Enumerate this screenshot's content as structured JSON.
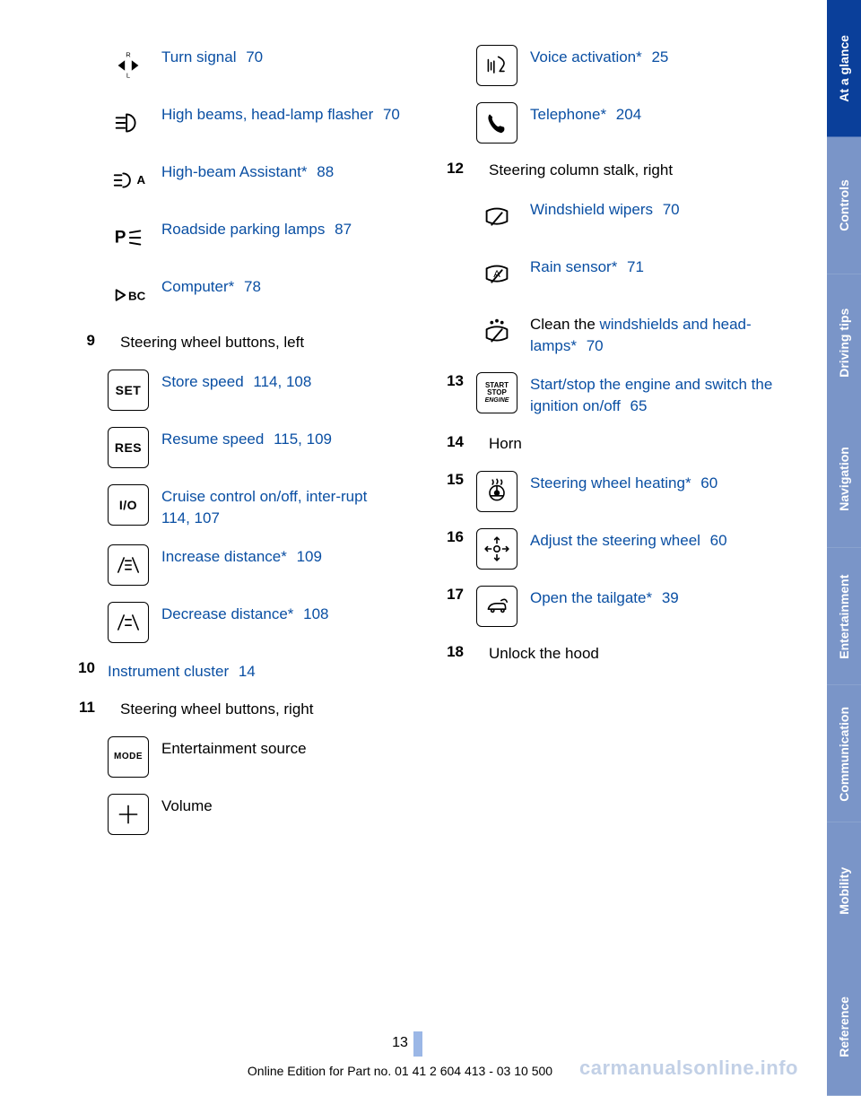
{
  "link_color": "#0a4fa3",
  "page_number": "13",
  "footer": "Online Edition for Part no. 01 41 2 604 413 - 03 10 500",
  "watermark": "carmanualsonline.info",
  "tabs": [
    {
      "label": "At a glance",
      "bg": "#0a3f9a",
      "fg": "#ffffff"
    },
    {
      "label": "Controls",
      "bg": "#7a95c8",
      "fg": "#ffffff"
    },
    {
      "label": "Driving tips",
      "bg": "#7a95c8",
      "fg": "#ffffff"
    },
    {
      "label": "Navigation",
      "bg": "#7a95c8",
      "fg": "#ffffff"
    },
    {
      "label": "Entertainment",
      "bg": "#7a95c8",
      "fg": "#ffffff"
    },
    {
      "label": "Communication",
      "bg": "#7a95c8",
      "fg": "#ffffff"
    },
    {
      "label": "Mobility",
      "bg": "#7a95c8",
      "fg": "#ffffff"
    },
    {
      "label": "Reference",
      "bg": "#7a95c8",
      "fg": "#ffffff"
    }
  ],
  "left_col": [
    {
      "icon": "turn-signal",
      "link": "Turn signal",
      "pages": "70"
    },
    {
      "icon": "high-beam",
      "link": "High beams, head‐lamp flasher",
      "pages": "70"
    },
    {
      "icon": "hba",
      "link": "High-beam Assistant*",
      "pages": "88"
    },
    {
      "icon": "parking-lamp",
      "link": "Roadside parking lamps",
      "pages": "87"
    },
    {
      "icon": "computer",
      "link": "Computer*",
      "pages": "78"
    },
    {
      "num": "9",
      "heading": "Steering wheel buttons, left"
    },
    {
      "icon": "set",
      "bordered": true,
      "link": "Store speed",
      "pages": "114,   108"
    },
    {
      "icon": "res",
      "bordered": true,
      "link": "Resume speed",
      "pages": "115,   109"
    },
    {
      "icon": "io",
      "bordered": true,
      "link": "Cruise control on/off, inter‐rupt",
      "pages": "114,   107"
    },
    {
      "icon": "inc-dist",
      "bordered": true,
      "link": "Increase distance*",
      "pages": "109"
    },
    {
      "icon": "dec-dist",
      "bordered": true,
      "link": "Decrease distance*",
      "pages": "108"
    },
    {
      "num": "10",
      "link_only": "Instrument cluster",
      "pages": "14"
    },
    {
      "num": "11",
      "heading": "Steering wheel buttons, right"
    },
    {
      "icon": "mode",
      "bordered": true,
      "plain": "Entertainment source"
    },
    {
      "icon": "plus",
      "bordered": true,
      "plain": "Volume"
    }
  ],
  "right_col": [
    {
      "icon": "voice",
      "bordered": true,
      "link": "Voice activation*",
      "pages": "25"
    },
    {
      "icon": "phone",
      "bordered": true,
      "link": "Telephone*",
      "pages": "204"
    },
    {
      "num": "12",
      "heading": "Steering column stalk, right"
    },
    {
      "icon": "wiper",
      "link": "Windshield wipers",
      "pages": "70"
    },
    {
      "icon": "rain",
      "link": "Rain sensor*",
      "pages": "71"
    },
    {
      "icon": "wash",
      "prefix": "Clean the ",
      "link": "windshields and head‐lamps*",
      "pages": "70"
    },
    {
      "num": "13",
      "icon": "startstop",
      "bordered": true,
      "link": "Start/stop the engine and switch the ignition on/off",
      "pages": "65"
    },
    {
      "num": "14",
      "heading": "Horn"
    },
    {
      "num": "15",
      "icon": "wheel-heat",
      "bordered": true,
      "link": "Steering wheel heating*",
      "pages": "60"
    },
    {
      "num": "16",
      "icon": "adjust-wheel",
      "bordered": true,
      "link": "Adjust the steering wheel",
      "pages": "60"
    },
    {
      "num": "17",
      "icon": "tailgate",
      "bordered": true,
      "link": "Open the tailgate*",
      "pages": "39"
    },
    {
      "num": "18",
      "heading": "Unlock the hood"
    }
  ],
  "icons": {
    "set": "SET",
    "res": "RES",
    "mode": "MODE",
    "io": "I/O"
  }
}
